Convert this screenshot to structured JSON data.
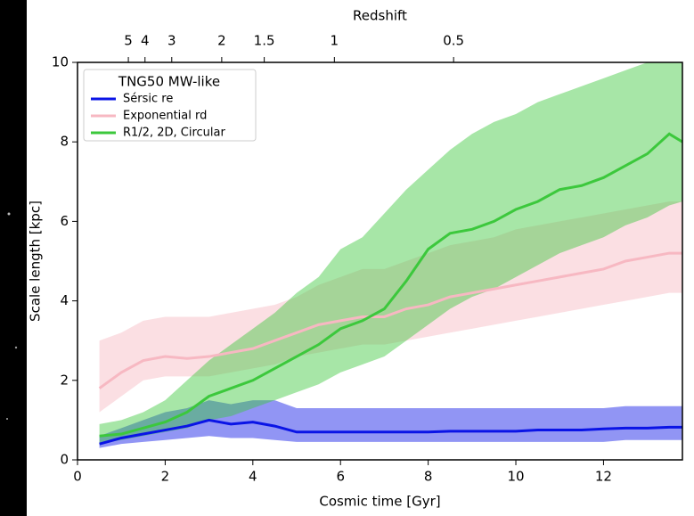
{
  "chart_data": {
    "type": "line",
    "xlabel": "Cosmic time [Gyr]",
    "ylabel": "Scale length [kpc]",
    "x2label": "Redshift",
    "legend_title": "TNG50 MW-like",
    "legend_loc": "upper left",
    "xlim": [
      0,
      13.8
    ],
    "ylim": [
      0,
      10
    ],
    "xticks": [
      0,
      2,
      4,
      6,
      8,
      10,
      12
    ],
    "yticks": [
      0,
      2,
      4,
      6,
      8,
      10
    ],
    "x2ticks": [
      {
        "value": 1.16,
        "label": "5"
      },
      {
        "value": 1.54,
        "label": "4"
      },
      {
        "value": 2.15,
        "label": "3"
      },
      {
        "value": 3.29,
        "label": "2"
      },
      {
        "value": 4.26,
        "label": "1.5"
      },
      {
        "value": 5.86,
        "label": "1"
      },
      {
        "value": 8.58,
        "label": "0.5"
      }
    ],
    "x": [
      0.5,
      1,
      1.5,
      2,
      2.5,
      3,
      3.5,
      4,
      4.5,
      5,
      5.5,
      6,
      6.5,
      7,
      7.5,
      8,
      8.5,
      9,
      9.5,
      10,
      10.5,
      11,
      11.5,
      12,
      12.5,
      13,
      13.5,
      13.8
    ],
    "series": [
      {
        "name": "Sérsic re",
        "color": "#0a14e6",
        "values": [
          0.4,
          0.55,
          0.65,
          0.75,
          0.85,
          1.0,
          0.9,
          0.95,
          0.85,
          0.7,
          0.7,
          0.7,
          0.7,
          0.7,
          0.7,
          0.7,
          0.72,
          0.72,
          0.72,
          0.72,
          0.75,
          0.75,
          0.75,
          0.78,
          0.8,
          0.8,
          0.82,
          0.82
        ],
        "upper": [
          0.6,
          0.8,
          1.0,
          1.2,
          1.3,
          1.5,
          1.4,
          1.5,
          1.5,
          1.3,
          1.3,
          1.3,
          1.3,
          1.3,
          1.3,
          1.3,
          1.3,
          1.3,
          1.3,
          1.3,
          1.3,
          1.3,
          1.3,
          1.3,
          1.35,
          1.35,
          1.35,
          1.35
        ],
        "lower": [
          0.3,
          0.4,
          0.45,
          0.5,
          0.55,
          0.6,
          0.55,
          0.55,
          0.5,
          0.45,
          0.45,
          0.45,
          0.45,
          0.45,
          0.45,
          0.45,
          0.45,
          0.45,
          0.45,
          0.45,
          0.45,
          0.45,
          0.45,
          0.45,
          0.5,
          0.5,
          0.5,
          0.5
        ]
      },
      {
        "name": "Exponential rd",
        "color": "#f7b8c2",
        "values": [
          1.8,
          2.2,
          2.5,
          2.6,
          2.55,
          2.6,
          2.7,
          2.8,
          3.0,
          3.2,
          3.4,
          3.5,
          3.6,
          3.6,
          3.8,
          3.9,
          4.1,
          4.2,
          4.3,
          4.4,
          4.5,
          4.6,
          4.7,
          4.8,
          5.0,
          5.1,
          5.2,
          5.2
        ],
        "upper": [
          3,
          3.2,
          3.5,
          3.6,
          3.6,
          3.6,
          3.7,
          3.8,
          3.9,
          4.1,
          4.4,
          4.6,
          4.8,
          4.8,
          5.0,
          5.2,
          5.4,
          5.5,
          5.6,
          5.8,
          5.9,
          6.0,
          6.1,
          6.2,
          6.3,
          6.4,
          6.5,
          6.5
        ],
        "lower": [
          1.2,
          1.6,
          2.0,
          2.1,
          2.1,
          2.1,
          2.2,
          2.3,
          2.4,
          2.6,
          2.7,
          2.8,
          2.9,
          2.9,
          3.0,
          3.1,
          3.2,
          3.3,
          3.4,
          3.5,
          3.6,
          3.7,
          3.8,
          3.9,
          4.0,
          4.1,
          4.2,
          4.2
        ]
      },
      {
        "name": "R1/2, 2D, Circular",
        "color": "#3cc83c",
        "values": [
          0.6,
          0.65,
          0.8,
          0.95,
          1.2,
          1.6,
          1.8,
          2.0,
          2.3,
          2.6,
          2.9,
          3.3,
          3.5,
          3.8,
          4.5,
          5.3,
          5.7,
          5.8,
          6.0,
          6.3,
          6.5,
          6.8,
          6.9,
          7.1,
          7.4,
          7.7,
          8.2,
          8.0
        ],
        "upper": [
          0.9,
          1.0,
          1.2,
          1.5,
          2.0,
          2.5,
          2.9,
          3.3,
          3.7,
          4.2,
          4.6,
          5.3,
          5.6,
          6.2,
          6.8,
          7.3,
          7.8,
          8.2,
          8.5,
          8.7,
          9.0,
          9.2,
          9.4,
          9.6,
          9.8,
          10,
          10,
          10
        ],
        "lower": [
          0.4,
          0.5,
          0.6,
          0.7,
          0.8,
          1.0,
          1.1,
          1.3,
          1.5,
          1.7,
          1.9,
          2.2,
          2.4,
          2.6,
          3.0,
          3.4,
          3.8,
          4.1,
          4.3,
          4.6,
          4.9,
          5.2,
          5.4,
          5.6,
          5.9,
          6.1,
          6.4,
          6.5
        ]
      }
    ]
  }
}
